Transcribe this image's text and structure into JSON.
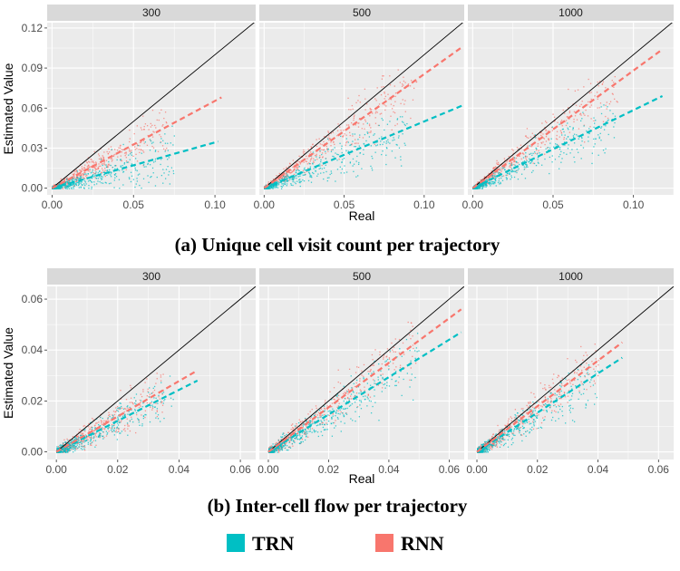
{
  "chart_data": [
    {
      "type": "scatter",
      "caption": "(a) Unique cell visit count per trajectory",
      "xlabel": "Real",
      "ylabel": "Estimated Value",
      "xlim": [
        -0.003,
        0.125
      ],
      "ylim": [
        -0.005,
        0.124
      ],
      "xticks": [
        0,
        0.05,
        0.1
      ],
      "xtick_labels": [
        "0.00",
        "0.05",
        "0.10"
      ],
      "yticks": [
        0,
        0.03,
        0.06,
        0.09,
        0.12
      ],
      "ytick_labels": [
        "0.00",
        "0.03",
        "0.06",
        "0.09",
        "0.12"
      ],
      "grid": true,
      "panels": [
        {
          "title": "300",
          "series": [
            {
              "name": "TRN",
              "fit_line": [
                [
                  0,
                  0
                ],
                [
                  0.102,
                  0.035
                ]
              ],
              "x_extent": 0.075,
              "y_extent": 0.045
            },
            {
              "name": "RNN",
              "fit_line": [
                [
                  0,
                  0
                ],
                [
                  0.104,
                  0.068
                ]
              ],
              "x_extent": 0.07,
              "y_extent": 0.055
            }
          ],
          "reference_line": [
            [
              0,
              0
            ],
            [
              0.125,
              0.125
            ]
          ]
        },
        {
          "title": "500",
          "series": [
            {
              "name": "TRN",
              "fit_line": [
                [
                  0,
                  0
                ],
                [
                  0.124,
                  0.062
                ]
              ],
              "x_extent": 0.09,
              "y_extent": 0.045
            },
            {
              "name": "RNN",
              "fit_line": [
                [
                  0,
                  0
                ],
                [
                  0.124,
                  0.106
                ]
              ],
              "x_extent": 0.095,
              "y_extent": 0.075
            }
          ],
          "reference_line": [
            [
              0,
              0
            ],
            [
              0.125,
              0.125
            ]
          ]
        },
        {
          "title": "1000",
          "series": [
            {
              "name": "TRN",
              "fit_line": [
                [
                  0,
                  0
                ],
                [
                  0.118,
                  0.069
                ]
              ],
              "x_extent": 0.09,
              "y_extent": 0.055
            },
            {
              "name": "RNN",
              "fit_line": [
                [
                  0,
                  0
                ],
                [
                  0.118,
                  0.104
                ]
              ],
              "x_extent": 0.09,
              "y_extent": 0.07
            }
          ],
          "reference_line": [
            [
              0,
              0
            ],
            [
              0.125,
              0.125
            ]
          ]
        }
      ]
    },
    {
      "type": "scatter",
      "caption": "(b) Inter-cell flow per trajectory",
      "xlabel": "Real",
      "ylabel": "Estimated Value",
      "xlim": [
        -0.003,
        0.065
      ],
      "ylim": [
        -0.003,
        0.065
      ],
      "xticks": [
        0,
        0.02,
        0.04,
        0.06
      ],
      "xtick_labels": [
        "0.00",
        "0.02",
        "0.04",
        "0.06"
      ],
      "yticks": [
        0,
        0.02,
        0.04,
        0.06
      ],
      "ytick_labels": [
        "0.00",
        "0.02",
        "0.04",
        "0.06"
      ],
      "grid": true,
      "panels": [
        {
          "title": "300",
          "series": [
            {
              "name": "TRN",
              "fit_line": [
                [
                  0,
                  0
                ],
                [
                  0.046,
                  0.028
                ]
              ],
              "x_extent": 0.038,
              "y_extent": 0.028
            },
            {
              "name": "RNN",
              "fit_line": [
                [
                  0,
                  0
                ],
                [
                  0.046,
                  0.032
                ]
              ],
              "x_extent": 0.035,
              "y_extent": 0.028
            }
          ],
          "reference_line": [
            [
              0,
              0
            ],
            [
              0.065,
              0.065
            ]
          ]
        },
        {
          "title": "500",
          "series": [
            {
              "name": "TRN",
              "fit_line": [
                [
                  0,
                  0
                ],
                [
                  0.064,
                  0.047
                ]
              ],
              "x_extent": 0.05,
              "y_extent": 0.04
            },
            {
              "name": "RNN",
              "fit_line": [
                [
                  0,
                  0
                ],
                [
                  0.064,
                  0.056
                ]
              ],
              "x_extent": 0.05,
              "y_extent": 0.045
            }
          ],
          "reference_line": [
            [
              0,
              0
            ],
            [
              0.065,
              0.065
            ]
          ]
        },
        {
          "title": "1000",
          "series": [
            {
              "name": "TRN",
              "fit_line": [
                [
                  0,
                  0
                ],
                [
                  0.048,
                  0.037
                ]
              ],
              "x_extent": 0.04,
              "y_extent": 0.03
            },
            {
              "name": "RNN",
              "fit_line": [
                [
                  0,
                  0
                ],
                [
                  0.048,
                  0.043
                ]
              ],
              "x_extent": 0.04,
              "y_extent": 0.04
            }
          ],
          "reference_line": [
            [
              0,
              0
            ],
            [
              0.065,
              0.065
            ]
          ]
        }
      ]
    }
  ],
  "legend": {
    "placement": "bottom",
    "items": [
      {
        "label": "TRN",
        "color": "#00bfc4"
      },
      {
        "label": "RNN",
        "color": "#f8766d"
      }
    ]
  },
  "colors": {
    "TRN": "#00bfc4",
    "RNN": "#f8766d",
    "panel_bg": "#ebebeb",
    "strip_bg": "#d9d9d9",
    "grid": "#ffffff",
    "reference_line": "#000000"
  }
}
